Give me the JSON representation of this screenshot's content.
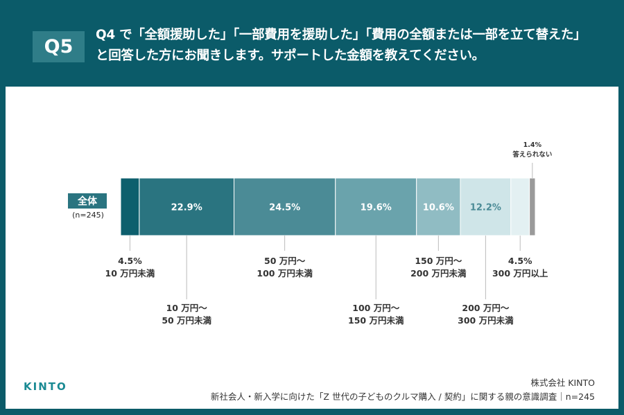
{
  "header": {
    "badge": "Q5",
    "question": "Q4 で「全額援助した」「一部費用を援助した」「費用の全額または一部を立て替えた」と回答した方にお聞きします。サポートした金額を教えてください。"
  },
  "row": {
    "label": "全体",
    "n": "(n=245)"
  },
  "footer": {
    "logo": "KINTO",
    "company": "株式会社 KINTO",
    "survey": "新社会人・新入学に向けた「Z 世代の子どものクルマ購入 / 契約」に関する親の意識調査｜n=245"
  },
  "chart_data": {
    "type": "bar",
    "orientation": "horizontal-stacked-100",
    "categories": [
      "10 万円未満",
      "10 万円〜50 万円未満",
      "50 万円〜100 万円未満",
      "100 万円〜150 万円未満",
      "150 万円〜200 万円未満",
      "200 万円〜300 万円未満",
      "300 万円以上",
      "答えられない"
    ],
    "series": [
      {
        "values": [
          4.5,
          22.9,
          24.5,
          19.6,
          10.6,
          12.2,
          4.5,
          1.4
        ]
      }
    ],
    "colors": [
      "#0d5f6d",
      "#2a7480",
      "#4b8b96",
      "#6aa3ac",
      "#90bcc3",
      "#cfe5e8",
      "#e3f0f2",
      "#9a9a9a"
    ],
    "value_labels": [
      "4.5%",
      "22.9%",
      "24.5%",
      "19.6%",
      "10.6%",
      "12.2%",
      "4.5%",
      "1.4%"
    ],
    "annotations": [
      {
        "lines": [
          "4.5%",
          "10 万円未満"
        ]
      },
      {
        "lines": [
          "10 万円〜",
          "50 万円未満"
        ]
      },
      {
        "lines": [
          "50 万円〜",
          "100 万円未満"
        ]
      },
      {
        "lines": [
          "100 万円〜",
          "150 万円未満"
        ]
      },
      {
        "lines": [
          "150 万円〜",
          "200 万円未満"
        ]
      },
      {
        "lines": [
          "200 万円〜",
          "300 万円未満"
        ]
      },
      {
        "lines": [
          "4.5%",
          "300 万円以上"
        ]
      },
      {
        "lines": [
          "1.4%",
          "答えられない"
        ]
      }
    ]
  }
}
